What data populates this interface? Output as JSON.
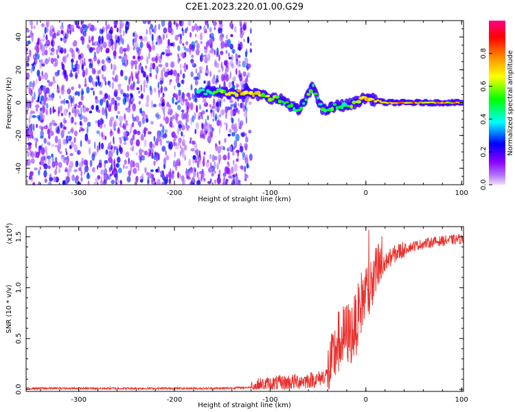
{
  "title": "C2E1.2023.220.01.00.G29",
  "chart_data": [
    {
      "type": "heatmap",
      "xlabel": "Height of straight line (km)",
      "ylabel": "Frequency (Hz)",
      "xlim": [
        -355,
        102
      ],
      "ylim": [
        -50,
        50
      ],
      "x_ticks": [
        "-300",
        "-200",
        "-100",
        "0",
        "100"
      ],
      "x_tick_values": [
        -300,
        -200,
        -100,
        0,
        100
      ],
      "y_ticks": [
        "-40",
        "-20",
        "0",
        "20",
        "40"
      ],
      "y_tick_values": [
        -40,
        -20,
        0,
        20,
        40
      ],
      "colorbar": {
        "label": "Normalized spectral amplitude",
        "range": [
          0,
          1
        ],
        "ticks": [
          "0.0",
          "0.2",
          "0.4",
          "0.6",
          "0.8"
        ],
        "tick_values": [
          0.0,
          0.2,
          0.4,
          0.6,
          0.8
        ],
        "colors": [
          "#f0dcf8",
          "#8a00ff",
          "#0000ff",
          "#00ffff",
          "#00ff00",
          "#ffff00",
          "#ff8800",
          "#ff0000",
          "#ff0088"
        ]
      },
      "noise_region": {
        "x": [
          -355,
          -120
        ],
        "y": [
          -50,
          50
        ],
        "amplitude": [
          0.05,
          0.25
        ]
      },
      "signal_ridge": [
        {
          "x": -175,
          "y": 7,
          "amplitude": 0.45
        },
        {
          "x": -150,
          "y": 6,
          "amplitude": 0.55
        },
        {
          "x": -125,
          "y": 6,
          "amplitude": 0.75
        },
        {
          "x": -105,
          "y": 4,
          "amplitude": 0.6
        },
        {
          "x": -85,
          "y": 1,
          "amplitude": 0.5
        },
        {
          "x": -70,
          "y": -5,
          "amplitude": 0.45
        },
        {
          "x": -55,
          "y": 10,
          "amplitude": 0.55
        },
        {
          "x": -45,
          "y": -5,
          "amplitude": 0.5
        },
        {
          "x": -30,
          "y": -2,
          "amplitude": 0.55
        },
        {
          "x": -15,
          "y": -1,
          "amplitude": 0.55
        },
        {
          "x": 0,
          "y": 3,
          "amplitude": 0.7
        },
        {
          "x": 20,
          "y": 0,
          "amplitude": 0.7
        },
        {
          "x": 50,
          "y": 0,
          "amplitude": 0.75
        },
        {
          "x": 80,
          "y": 0,
          "amplitude": 0.7
        },
        {
          "x": 100,
          "y": 0,
          "amplitude": 0.7
        }
      ]
    },
    {
      "type": "line",
      "xlabel": "Height of straight line (km)",
      "ylabel": "SNR (10 * v/v)",
      "exponent_label": "(x10",
      "exponent_sup": "4",
      "exponent_close": ")",
      "xlim": [
        -355,
        102
      ],
      "ylim": [
        -0.02,
        1.6
      ],
      "x_ticks": [
        "-300",
        "-200",
        "-100",
        "0",
        "100"
      ],
      "x_tick_values": [
        -300,
        -200,
        -100,
        0,
        100
      ],
      "y_ticks": [
        "0.0",
        "0.5",
        "1.0",
        "1.5"
      ],
      "y_tick_values": [
        0.0,
        0.5,
        1.0,
        1.5
      ],
      "line_color": "#e8302c",
      "series": [
        {
          "x": [
            -355,
            -300,
            -250,
            -200,
            -150,
            -120,
            -100,
            -80,
            -60,
            -50,
            -40,
            -35,
            -30,
            -25,
            -20,
            -15,
            -10,
            -5,
            0,
            5,
            10,
            15,
            20,
            30,
            40,
            50,
            60,
            70,
            80,
            90,
            100
          ],
          "values": [
            0.01,
            0.01,
            0.01,
            0.01,
            0.01,
            0.02,
            0.05,
            0.07,
            0.09,
            0.1,
            0.15,
            0.25,
            0.45,
            0.5,
            0.55,
            0.55,
            0.65,
            0.85,
            0.95,
            1.0,
            1.1,
            1.2,
            1.25,
            1.33,
            1.38,
            1.41,
            1.43,
            1.45,
            1.46,
            1.47,
            1.48
          ]
        }
      ]
    }
  ]
}
